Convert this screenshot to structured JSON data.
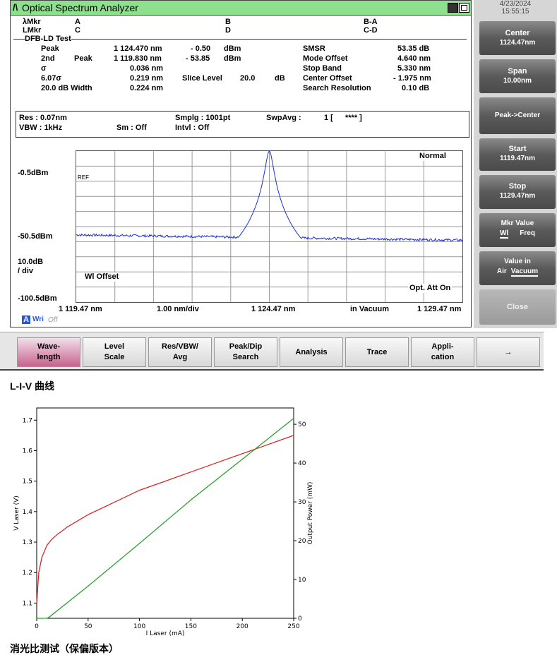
{
  "window": {
    "title": "Optical Spectrum Analyzer",
    "logo": "/\\"
  },
  "datetime": {
    "date": "4/23/2024",
    "time": "15:55:15"
  },
  "markers": {
    "a_label": "λMkr",
    "a_val": "A",
    "b_val": "B",
    "ba_val": "B-A",
    "l_label": "LMkr",
    "c_val": "C",
    "d_val": "D",
    "cd_val": "C-D"
  },
  "test_name": "DFB-LD Test",
  "results": {
    "peak_label": "Peak",
    "peak_wl": "1 124.470 nm",
    "peak_pwr": "- 0.50",
    "peak_unit": "dBm",
    "second_label": "2nd",
    "second_peak": "Peak",
    "second_wl": "1 119.830 nm",
    "second_pwr": "- 53.85",
    "second_unit": "dBm",
    "sigma_label": "σ",
    "sigma_val": "0.036 nm",
    "sigma6_label": "6.07σ",
    "sigma6_val": "0.219 nm",
    "slice_label": "Slice Level",
    "slice_val": "20.0",
    "slice_unit": "dB",
    "width_label": "20.0  dB Width",
    "width_val": "0.224 nm",
    "smsr_label": "SMSR",
    "smsr_val": "53.35 dB",
    "mode_label": "Mode Offset",
    "mode_val": "4.640 nm",
    "stop_label": "Stop Band",
    "stop_val": "5.330 nm",
    "center_label": "Center Offset",
    "center_val": "- 1.975 nm",
    "search_label": "Search Resolution",
    "search_val": "0.10  dB"
  },
  "settings": {
    "res": "Res : 0.07nm",
    "vbw": "VBW :  1kHz",
    "smplg": "Smplg :  1001pt",
    "sm": "Sm :  Off",
    "intvl": "Intvl :  Off",
    "swpavg": "SwpAvg :",
    "swp_val": "1 [",
    "swp_stars": "****  ]"
  },
  "spectrum": {
    "mode": "Normal",
    "ref_tag": "REF",
    "y_top": "-0.5dBm",
    "y_mid": "-50.5dBm",
    "y_bot": "-100.5dBm",
    "scale": "10.0dB",
    "per_div": "/ div",
    "wl_offset": "Wl Offset",
    "opt_att": "Opt. Att On",
    "x_start": "1 119.47 nm",
    "x_div": "1.00 nm/div",
    "x_center": "1 124.47 nm",
    "x_medium": "in Vacuum",
    "x_stop": "1 129.47 nm",
    "trace_label": "A",
    "wri": "Wri",
    "off": "Off"
  },
  "softkeys": [
    {
      "line1": "Center",
      "line2": "1124.47nm"
    },
    {
      "line1": "Span",
      "line2": "10.00nm"
    },
    {
      "line1": "Peak->Center",
      "line2": ""
    },
    {
      "line1": "Start",
      "line2": "1119.47nm"
    },
    {
      "line1": "Stop",
      "line2": "1129.47nm"
    },
    {
      "line1": "Mkr Value",
      "line2a": "Wl",
      "line2b": "Freq"
    },
    {
      "line1": "Value in",
      "line2a": "Air",
      "line2b": "Vacuum"
    },
    {
      "line1": "Close",
      "line2": ""
    }
  ],
  "bottom_keys": [
    {
      "l1": "Wave-",
      "l2": "length"
    },
    {
      "l1": "Level",
      "l2": "Scale"
    },
    {
      "l1": "Res/VBW/",
      "l2": "Avg"
    },
    {
      "l1": "Peak/Dip",
      "l2": "Search"
    },
    {
      "l1": "Analysis",
      "l2": ""
    },
    {
      "l1": "Trace",
      "l2": ""
    },
    {
      "l1": "Appli-",
      "l2": "cation"
    },
    {
      "l1": "→",
      "l2": ""
    }
  ],
  "liv_heading": "L-I-V 曲线",
  "er_heading": "消光比测试（保偏版本）",
  "chart_data": {
    "type": "line",
    "xlabel": "I Laser (mA)",
    "ylabel": "V Laser (V)",
    "y2label": "Output Power (mW)",
    "xlim": [
      0,
      250
    ],
    "ylim": [
      1.05,
      1.74
    ],
    "y2lim": [
      0,
      54.2
    ],
    "xticks": [
      "0",
      "50",
      "100",
      "150",
      "200",
      "250"
    ],
    "yticks": [
      "1.1",
      "1.2",
      "1.3",
      "1.4",
      "1.5",
      "1.6",
      "1.7"
    ],
    "y2ticks": [
      "0",
      "10",
      "20",
      "30",
      "40",
      "50"
    ],
    "series": [
      {
        "axis": "left",
        "color": "#d62728",
        "x": [
          0,
          2,
          5,
          10,
          15,
          20,
          30,
          40,
          50,
          75,
          100,
          125,
          150,
          175,
          200,
          225,
          250
        ],
        "y": [
          1.1,
          1.2,
          1.25,
          1.29,
          1.31,
          1.325,
          1.35,
          1.37,
          1.39,
          1.43,
          1.47,
          1.5,
          1.53,
          1.56,
          1.59,
          1.62,
          1.65
        ]
      },
      {
        "axis": "right",
        "color": "#2ca02c",
        "x": [
          0,
          10,
          12,
          50,
          100,
          150,
          200,
          250
        ],
        "y": [
          0,
          0,
          0.3,
          8.3,
          19.3,
          30.5,
          41.0,
          51.5
        ]
      }
    ]
  }
}
